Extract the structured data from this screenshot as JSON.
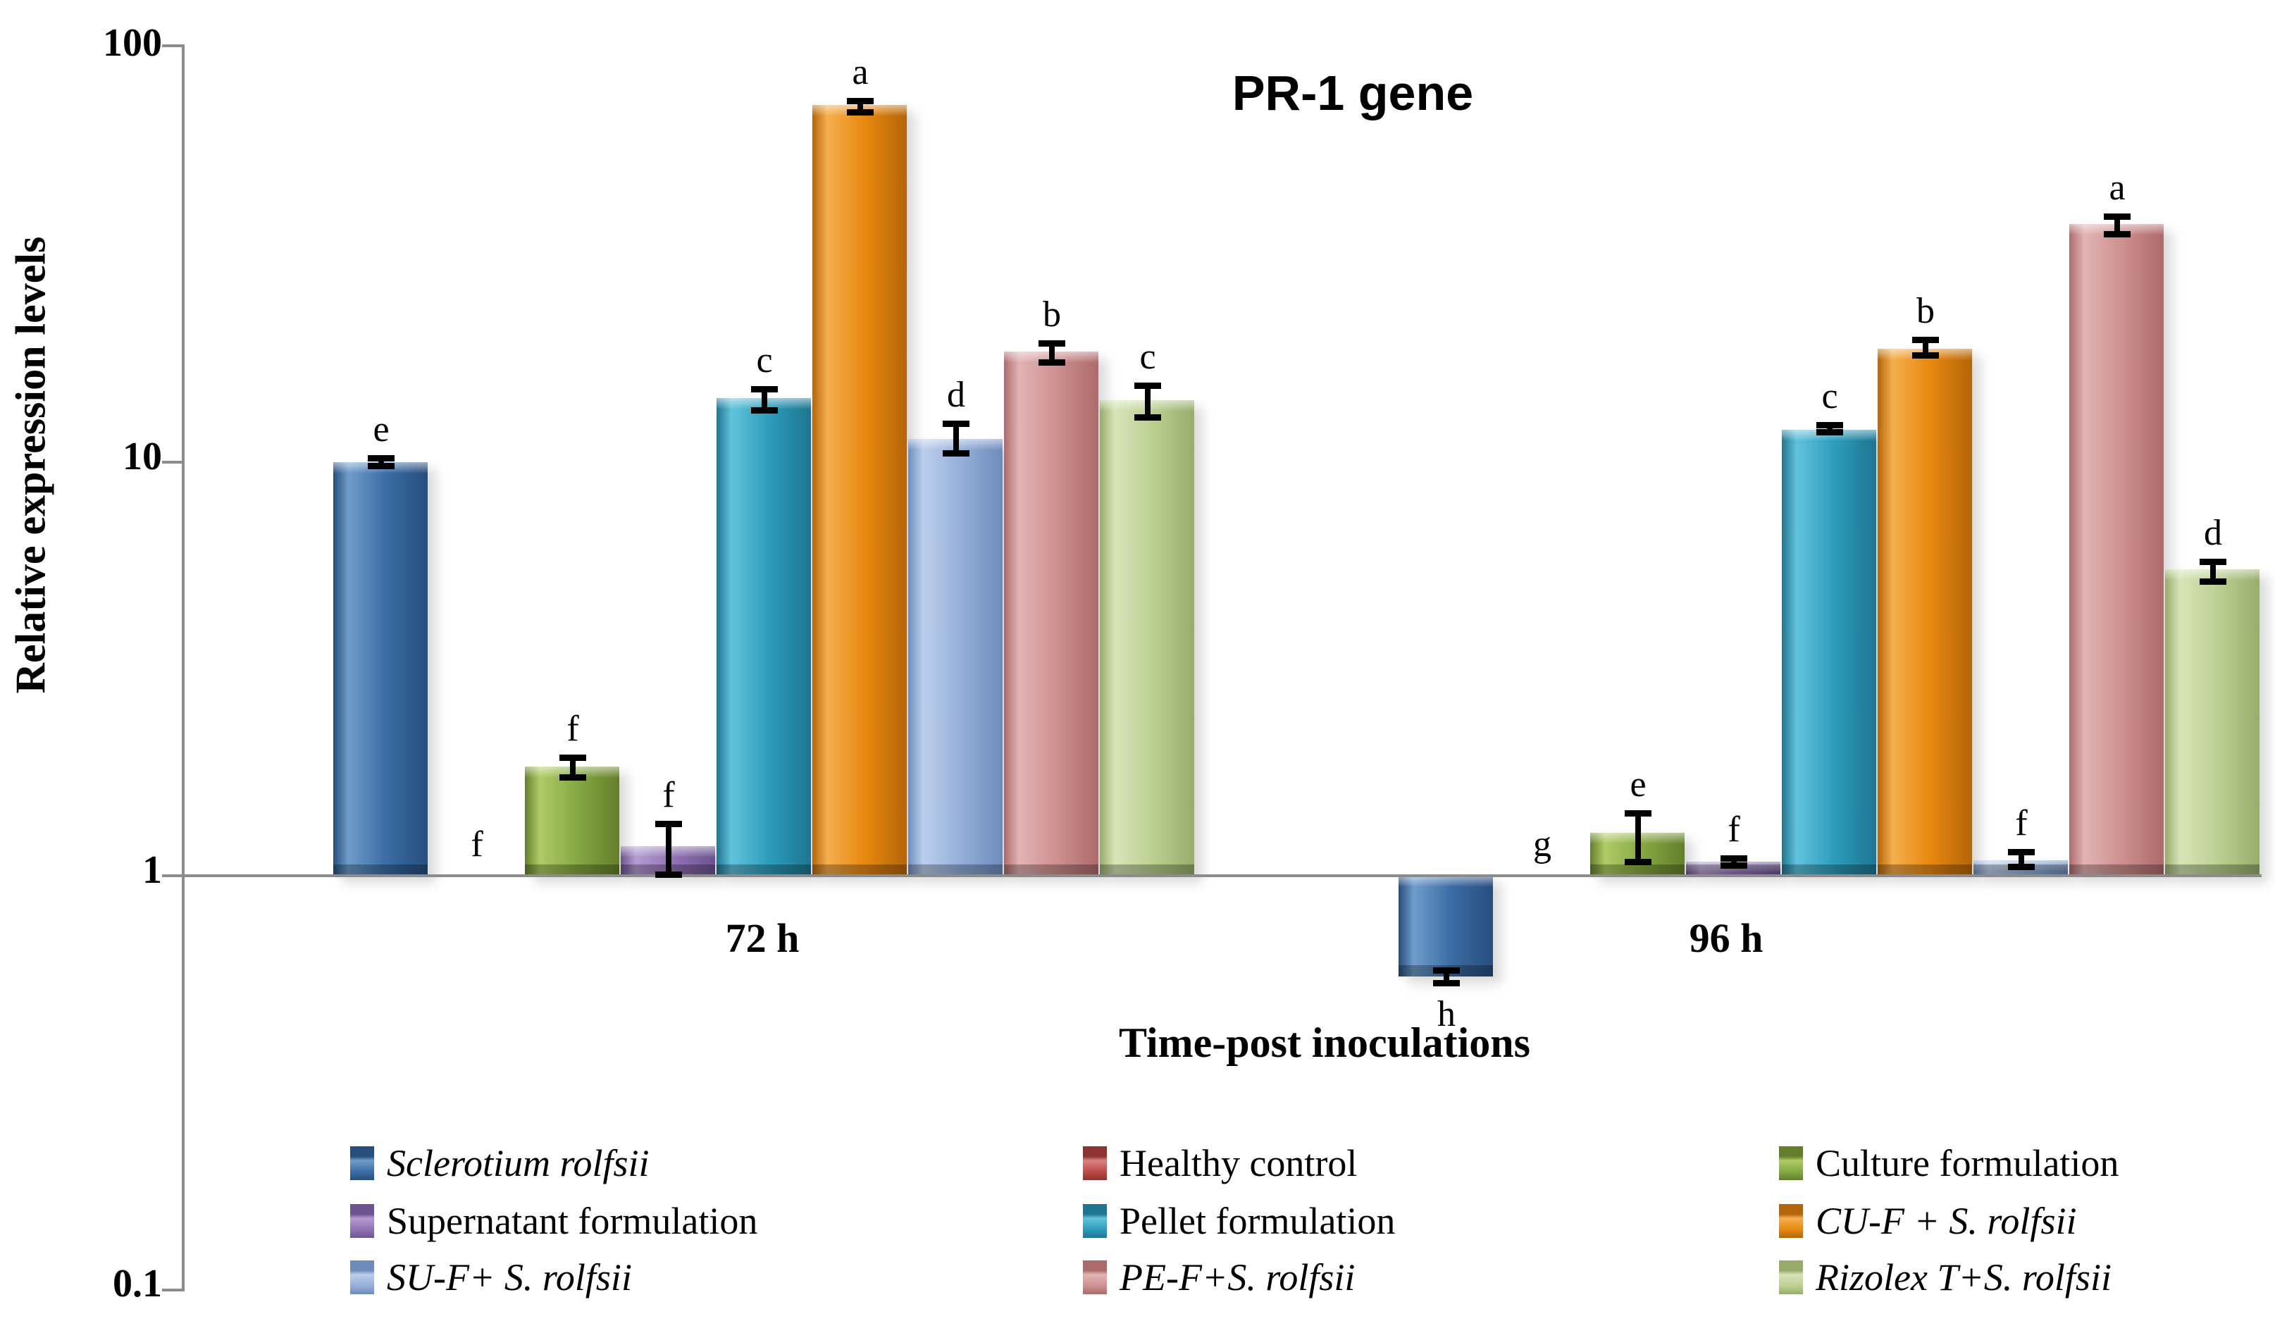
{
  "title": "PR-1 gene",
  "y_axis": {
    "label": "Relative expression levels",
    "ticks": [
      "100",
      "10",
      "1",
      "0.1"
    ],
    "tick_values": [
      100,
      10,
      1,
      0.1
    ],
    "scale": "log10"
  },
  "x_axis": {
    "label": "Time-post inoculations",
    "categories": [
      "72 h",
      "96 h"
    ]
  },
  "legend": {
    "position": "bottom",
    "columns": [
      [
        0,
        3,
        6
      ],
      [
        1,
        4,
        7
      ],
      [
        2,
        5,
        8
      ]
    ]
  },
  "chart_data": {
    "type": "bar",
    "scale": "log10",
    "ylim": [
      0.1,
      100
    ],
    "grid": false,
    "baseline_value": 1,
    "categories": [
      "72 h",
      "96 h"
    ],
    "series": [
      {
        "name": "Sclerotium rolfsii",
        "italic": true,
        "color": "#3c6da6",
        "dark": "#274e7d",
        "light": "#6f9cc9",
        "values": [
          10.0,
          0.57
        ],
        "err_up": [
          0.4,
          0.03
        ],
        "err_down": [
          0.4,
          0.03
        ],
        "letters": [
          "e",
          "h"
        ]
      },
      {
        "name": "Healthy control",
        "italic": false,
        "color": "#be4b48",
        "dark": "#8e3330",
        "light": "#d98380",
        "values": [
          1,
          1
        ],
        "err_up": [
          null,
          null
        ],
        "err_down": [
          null,
          null
        ],
        "letters": [
          "f",
          "g"
        ]
      },
      {
        "name": "Culture formulation",
        "italic": false,
        "color": "#85a842",
        "dark": "#647f2c",
        "light": "#afcb66",
        "values": [
          1.84,
          1.27
        ],
        "err_up": [
          0.12,
          0.17
        ],
        "err_down": [
          0.14,
          0.21
        ],
        "letters": [
          "f",
          "e"
        ]
      },
      {
        "name": "Supernatant formulation",
        "italic": false,
        "color": "#9272b4",
        "dark": "#6d5390",
        "light": "#b49bd0",
        "values": [
          1.18,
          1.08
        ],
        "err_up": [
          0.18,
          0.04
        ],
        "err_down": [
          0.19,
          0.04
        ],
        "letters": [
          "f",
          "f"
        ]
      },
      {
        "name": "Pellet formulation",
        "italic": false,
        "color": "#2e9dbc",
        "dark": "#1f7591",
        "light": "#62c2db",
        "values": [
          14.3,
          12.0
        ],
        "err_up": [
          1.0,
          0.5
        ],
        "err_down": [
          1.2,
          0.4
        ],
        "letters": [
          "c",
          "c"
        ]
      },
      {
        "name": "CU-F + S. rolfsii",
        "italic": true,
        "color": "#e8880f",
        "dark": "#b4650a",
        "light": "#f5ae4e",
        "values": [
          73,
          18.8
        ],
        "err_up": [
          3.0,
          1.3
        ],
        "err_down": [
          4.0,
          1.0
        ],
        "letters": [
          "a",
          "b"
        ]
      },
      {
        "name": "SU-F+ S. rolfsii",
        "italic": true,
        "color": "#95afd9",
        "dark": "#6e8cbb",
        "light": "#bcceea",
        "values": [
          11.4,
          1.09
        ],
        "err_up": [
          1.2,
          0.07
        ],
        "err_down": [
          1.1,
          0.06
        ],
        "letters": [
          "d",
          "f"
        ]
      },
      {
        "name": "PE-F+S. rolfsii",
        "italic": true,
        "color": "#ce9090",
        "dark": "#ad6a6a",
        "light": "#e2b4b4",
        "values": [
          18.5,
          37.7
        ],
        "err_up": [
          1.2,
          2.3
        ],
        "err_down": [
          1.4,
          2.8
        ],
        "letters": [
          "b",
          "a"
        ]
      },
      {
        "name": "Rizolex T+S. rolfsii",
        "italic": true,
        "color": "#bdd093",
        "dark": "#97ac6b",
        "light": "#d7e4b8",
        "values": [
          14.1,
          5.5
        ],
        "err_up": [
          1.5,
          0.35
        ],
        "err_down": [
          1.5,
          0.45
        ],
        "letters": [
          "c",
          "d"
        ]
      }
    ]
  }
}
